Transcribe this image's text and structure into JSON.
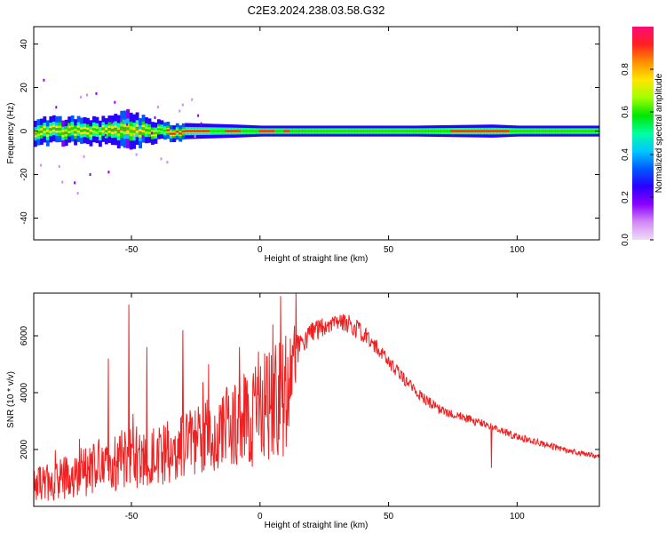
{
  "title": "C2E3.2024.238.03.58.G32",
  "chart_data": [
    {
      "type": "heatmap",
      "xlabel": "Height of straight line (km)",
      "ylabel": "Frequency (Hz)",
      "xlim": [
        -88,
        132
      ],
      "ylim": [
        -50,
        48
      ],
      "xticks": [
        "-50",
        "0",
        "50",
        "100"
      ],
      "yticks": [
        "-40",
        "-20",
        "0",
        "20",
        "40"
      ],
      "grid": false,
      "ridge_frequency_hz": 0,
      "ridge_halfwidth_hz": [
        [
          -88,
          6
        ],
        [
          -60,
          6
        ],
        [
          -52,
          9
        ],
        [
          -45,
          6
        ],
        [
          -38,
          4
        ],
        [
          -10,
          3
        ],
        [
          0,
          2.5
        ],
        [
          20,
          2.5
        ],
        [
          60,
          2.5
        ],
        [
          90,
          3
        ],
        [
          100,
          2.5
        ],
        [
          132,
          2.5
        ]
      ],
      "peak_segments_km": [
        [
          -37,
          -20
        ],
        [
          -14,
          -8
        ],
        [
          -1,
          5
        ],
        [
          9,
          11
        ],
        [
          74,
          96
        ]
      ],
      "colorbar": {
        "label": "Normalized spectral amplitude",
        "ticks": [
          "0.0",
          "0.2",
          "0.4",
          "0.6",
          "0.8"
        ],
        "range": [
          0,
          1
        ],
        "colors": [
          "#eedcf6",
          "#d38af5",
          "#8a00ff",
          "#2a00ff",
          "#0059ff",
          "#00c8ff",
          "#00ffa0",
          "#00e600",
          "#a0ff00",
          "#ffe600",
          "#ff9000",
          "#ff2020",
          "#ff0a78"
        ]
      }
    },
    {
      "type": "line",
      "xlabel": "Height of straight line (km)",
      "ylabel": "SNR (10 * v/v)",
      "xlim": [
        -88,
        132
      ],
      "ylim": [
        0,
        7500
      ],
      "xticks": [
        "-50",
        "0",
        "50",
        "100"
      ],
      "yticks": [
        "2000",
        "4000",
        "6000"
      ],
      "grid": false,
      "series": [
        {
          "color": "#ee2222",
          "x": [
            -88,
            -80,
            -70,
            -60,
            -50,
            -40,
            -30,
            -20,
            -10,
            0,
            5,
            10,
            15,
            20,
            25,
            30,
            35,
            40,
            45,
            50,
            55,
            60,
            65,
            70,
            80,
            90,
            100,
            110,
            120,
            132
          ],
          "mean": [
            700,
            900,
            1200,
            1500,
            1700,
            1800,
            2100,
            2500,
            2900,
            3300,
            3700,
            4200,
            5600,
            6100,
            6300,
            6500,
            6400,
            6100,
            5600,
            5100,
            4600,
            4100,
            3700,
            3400,
            3100,
            2800,
            2450,
            2200,
            1950,
            1750
          ],
          "spread": [
            650,
            700,
            900,
            1000,
            1100,
            1100,
            1200,
            1300,
            1500,
            1800,
            2300,
            2500,
            500,
            380,
            350,
            300,
            330,
            300,
            280,
            250,
            220,
            200,
            190,
            170,
            150,
            140,
            130,
            110,
            100,
            90
          ],
          "spikes": [
            {
              "x": -51,
              "y": 7100
            },
            {
              "x": -59,
              "y": 5200
            },
            {
              "x": -44,
              "y": 5600
            },
            {
              "x": -30,
              "y": 6200
            },
            {
              "x": -20,
              "y": 5000
            },
            {
              "x": -8,
              "y": 5600
            },
            {
              "x": 5,
              "y": 6400
            },
            {
              "x": 8,
              "y": 7400
            },
            {
              "x": 10,
              "y": 6000
            },
            {
              "x": 14,
              "y": 7550
            },
            {
              "x": 7,
              "y": 1800
            },
            {
              "x": -3,
              "y": 1400
            },
            {
              "x": 90,
              "y": 1350
            }
          ]
        }
      ]
    }
  ]
}
